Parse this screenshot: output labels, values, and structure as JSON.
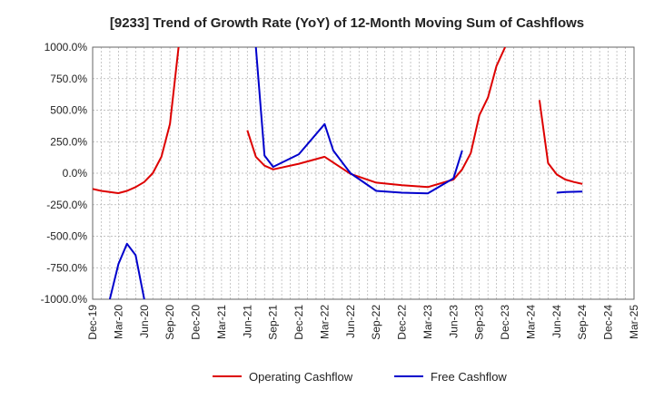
{
  "chart_data": {
    "type": "line",
    "title": "[9233]  Trend of Growth Rate (YoY) of 12-Month Moving Sum of Cashflows",
    "xlabel": "",
    "ylabel": "",
    "ylim": [
      -1000,
      1000
    ],
    "grid": true,
    "legend_position": "bottom",
    "y_ticks": [
      "1000.0%",
      "750.0%",
      "500.0%",
      "250.0%",
      "0.0%",
      "-250.0%",
      "-500.0%",
      "-750.0%",
      "-1000.0%"
    ],
    "y_tick_values": [
      1000,
      750,
      500,
      250,
      0,
      -250,
      -500,
      -750,
      -1000
    ],
    "x_ticks": [
      "Dec-19",
      "Mar-20",
      "Jun-20",
      "Sep-20",
      "Dec-20",
      "Mar-21",
      "Jun-21",
      "Sep-21",
      "Dec-21",
      "Mar-22",
      "Jun-22",
      "Sep-22",
      "Dec-22",
      "Mar-23",
      "Jun-23",
      "Sep-23",
      "Dec-23",
      "Mar-24",
      "Jun-24",
      "Sep-24",
      "Dec-24",
      "Mar-25"
    ],
    "x_range": [
      "Dec-19",
      "Mar-25"
    ],
    "series": [
      {
        "name": "Operating Cashflow",
        "color": "#dd0000",
        "segments": [
          [
            [
              "Dec-19",
              -125
            ],
            [
              "Jan-20",
              -140
            ],
            [
              "Feb-20",
              -150
            ],
            [
              "Mar-20",
              -158
            ],
            [
              "Apr-20",
              -140
            ],
            [
              "May-20",
              -110
            ],
            [
              "Jun-20",
              -70
            ],
            [
              "Jul-20",
              0
            ],
            [
              "Aug-20",
              130
            ],
            [
              "Sep-20",
              390
            ],
            [
              "Oct-20",
              1000
            ]
          ],
          [
            [
              "Jun-21",
              340
            ],
            [
              "Jul-21",
              130
            ],
            [
              "Aug-21",
              60
            ],
            [
              "Sep-21",
              30
            ],
            [
              "Dec-21",
              75
            ],
            [
              "Mar-22",
              130
            ],
            [
              "Jun-22",
              -5
            ],
            [
              "Sep-22",
              -75
            ],
            [
              "Dec-22",
              -95
            ],
            [
              "Mar-23",
              -110
            ],
            [
              "Jun-23",
              -50
            ],
            [
              "Jul-23",
              30
            ],
            [
              "Aug-23",
              160
            ],
            [
              "Sep-23",
              460
            ],
            [
              "Oct-23",
              600
            ],
            [
              "Nov-23",
              850
            ],
            [
              "Dec-23",
              1000
            ]
          ],
          [
            [
              "Apr-24",
              580
            ],
            [
              "May-24",
              80
            ],
            [
              "Jun-24",
              -10
            ],
            [
              "Jul-24",
              -50
            ],
            [
              "Aug-24",
              -70
            ],
            [
              "Sep-24",
              -85
            ]
          ]
        ]
      },
      {
        "name": "Free Cashflow",
        "color": "#0000cc",
        "segments": [
          [
            [
              "Feb-20",
              -1000
            ],
            [
              "Mar-20",
              -720
            ],
            [
              "Apr-20",
              -560
            ],
            [
              "May-20",
              -650
            ],
            [
              "Jun-20",
              -1000
            ]
          ],
          [
            [
              "Jul-21",
              1000
            ],
            [
              "Aug-21",
              140
            ],
            [
              "Sep-21",
              50
            ],
            [
              "Dec-21",
              150
            ],
            [
              "Mar-22",
              390
            ],
            [
              "Apr-22",
              180
            ],
            [
              "Jun-22",
              0
            ],
            [
              "Sep-22",
              -140
            ],
            [
              "Dec-22",
              -155
            ],
            [
              "Mar-23",
              -160
            ],
            [
              "Jun-23",
              -40
            ],
            [
              "Jul-23",
              180
            ]
          ],
          [
            [
              "Jun-24",
              -155
            ],
            [
              "Jul-24",
              -150
            ],
            [
              "Sep-24",
              -145
            ]
          ]
        ]
      }
    ]
  }
}
